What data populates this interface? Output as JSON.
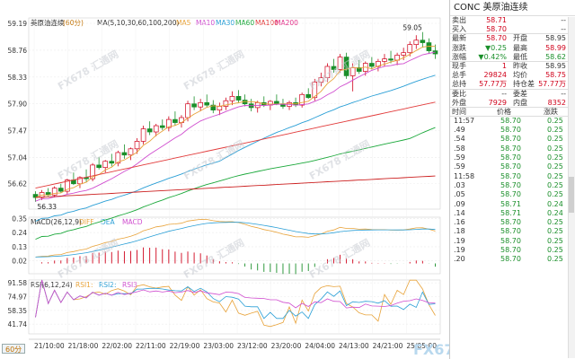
{
  "period_label": "60分",
  "main_header": {
    "name": "美原油连续",
    "period": "(60分)",
    "ma_label": "MA(5,10,30,60,100,200)",
    "ma_items": [
      {
        "label": "MA5",
        "color": "#e8a33a"
      },
      {
        "label": "MA10",
        "color": "#d04ecf"
      },
      {
        "label": "MA30",
        "color": "#2a9fd6"
      },
      {
        "label": "MA60",
        "color": "#1aa83a"
      },
      {
        "label": "MA100",
        "color": "#e23c3c"
      },
      {
        "label": "MA200",
        "color": "#e2328a"
      }
    ]
  },
  "macd_header": {
    "label": "MACD(26,12,9)",
    "items": [
      {
        "label": "DIFF",
        "color": "#e8a33a"
      },
      {
        "label": "DEA",
        "color": "#2a9fd6"
      },
      {
        "label": "MACD",
        "color": "#d04ecf"
      }
    ]
  },
  "rsi_header": {
    "label": "RSI(6,12,24)",
    "items": [
      {
        "label": "RSI1:",
        "color": "#e8a33a"
      },
      {
        "label": "RSI2:",
        "color": "#2a9fd6"
      },
      {
        "label": "RSI3",
        "color": "#d04ecf"
      }
    ]
  },
  "watermark_text": "FX678 汇通网",
  "logo_text": "FX678 汇通网",
  "chart_data": {
    "type": "candlestick",
    "price_axis_ticks": [
      "59.19",
      "58.76",
      "58.33",
      "57.90",
      "57.47",
      "57.04",
      "56.62"
    ],
    "price_ylim": [
      56.3,
      59.19
    ],
    "macd_axis_ticks": [
      "0.35",
      "0.24",
      "0.13",
      "0.02"
    ],
    "macd_ylim": [
      -0.08,
      0.36
    ],
    "rsi_axis_ticks": [
      "91.58",
      "74.97",
      "58.35",
      "41.74"
    ],
    "rsi_ylim": [
      30,
      95
    ],
    "time_labels": [
      "21/10:00",
      "21/18:00",
      "22/02:00",
      "22/11:00",
      "22/19:00",
      "23/03:00",
      "23/12:00",
      "23/20:00",
      "24/04:00",
      "24/13:00",
      "24/21:00",
      "25/05:00"
    ],
    "annotations": {
      "high": "59.05",
      "low": "56.33"
    },
    "candles": [
      [
        56.45,
        56.5,
        56.33,
        56.4
      ],
      [
        56.4,
        56.52,
        56.36,
        56.48
      ],
      [
        56.48,
        56.55,
        56.42,
        56.44
      ],
      [
        56.44,
        56.58,
        56.4,
        56.55
      ],
      [
        56.55,
        56.62,
        56.48,
        56.5
      ],
      [
        56.5,
        56.7,
        56.46,
        56.68
      ],
      [
        56.68,
        56.8,
        56.6,
        56.62
      ],
      [
        56.62,
        56.74,
        56.55,
        56.72
      ],
      [
        56.72,
        56.85,
        56.65,
        56.7
      ],
      [
        56.7,
        56.95,
        56.66,
        56.92
      ],
      [
        56.92,
        57.05,
        56.85,
        56.88
      ],
      [
        56.88,
        57.0,
        56.8,
        56.98
      ],
      [
        56.98,
        57.1,
        56.9,
        56.95
      ],
      [
        56.95,
        57.15,
        56.9,
        57.12
      ],
      [
        57.12,
        57.25,
        57.02,
        57.08
      ],
      [
        57.08,
        57.2,
        57.0,
        57.18
      ],
      [
        57.18,
        57.35,
        57.1,
        57.3
      ],
      [
        57.3,
        57.55,
        57.25,
        57.5
      ],
      [
        57.5,
        57.62,
        57.4,
        57.45
      ],
      [
        57.45,
        57.58,
        57.38,
        57.55
      ],
      [
        57.55,
        57.65,
        57.48,
        57.52
      ],
      [
        57.52,
        57.7,
        57.46,
        57.65
      ],
      [
        57.65,
        57.78,
        57.55,
        57.6
      ],
      [
        57.6,
        57.72,
        57.52,
        57.68
      ],
      [
        57.68,
        57.95,
        57.62,
        57.9
      ],
      [
        57.9,
        58.02,
        57.8,
        57.85
      ],
      [
        57.85,
        57.98,
        57.78,
        57.92
      ],
      [
        57.92,
        58.05,
        57.84,
        57.88
      ],
      [
        57.88,
        57.96,
        57.75,
        57.8
      ],
      [
        57.8,
        57.92,
        57.72,
        57.86
      ],
      [
        57.86,
        58.0,
        57.8,
        57.95
      ],
      [
        57.95,
        58.1,
        57.88,
        58.02
      ],
      [
        58.02,
        58.12,
        57.92,
        57.96
      ],
      [
        57.96,
        58.05,
        57.86,
        57.9
      ],
      [
        57.9,
        57.98,
        57.78,
        57.84
      ],
      [
        57.84,
        57.95,
        57.76,
        57.92
      ],
      [
        57.92,
        58.02,
        57.85,
        57.88
      ],
      [
        57.88,
        57.96,
        57.8,
        57.94
      ],
      [
        57.94,
        58.05,
        57.88,
        57.9
      ],
      [
        57.9,
        57.98,
        57.82,
        57.86
      ],
      [
        57.86,
        57.95,
        57.8,
        57.92
      ],
      [
        57.92,
        58.0,
        57.85,
        57.88
      ],
      [
        57.88,
        58.08,
        57.84,
        58.05
      ],
      [
        58.05,
        58.15,
        57.98,
        58.0
      ],
      [
        58.0,
        58.3,
        57.95,
        58.25
      ],
      [
        58.25,
        58.4,
        58.18,
        58.32
      ],
      [
        58.32,
        58.55,
        58.25,
        58.5
      ],
      [
        58.5,
        58.62,
        58.4,
        58.45
      ],
      [
        58.45,
        58.7,
        58.4,
        58.65
      ],
      [
        58.65,
        58.72,
        58.3,
        58.35
      ],
      [
        58.35,
        58.55,
        58.1,
        58.48
      ],
      [
        58.48,
        58.6,
        58.38,
        58.42
      ],
      [
        58.42,
        58.58,
        58.35,
        58.55
      ],
      [
        58.55,
        58.65,
        58.45,
        58.5
      ],
      [
        58.5,
        58.62,
        58.42,
        58.58
      ],
      [
        58.58,
        58.7,
        58.5,
        58.62
      ],
      [
        58.62,
        58.75,
        58.55,
        58.6
      ],
      [
        58.6,
        58.72,
        58.52,
        58.68
      ],
      [
        58.68,
        58.8,
        58.6,
        58.72
      ],
      [
        58.72,
        58.9,
        58.66,
        58.85
      ],
      [
        58.85,
        59.0,
        58.78,
        58.92
      ],
      [
        58.92,
        59.05,
        58.8,
        58.88
      ],
      [
        58.88,
        58.95,
        58.7,
        58.75
      ],
      [
        58.75,
        58.85,
        58.62,
        58.7
      ]
    ]
  },
  "quote": {
    "title": "CONC 美原油连续",
    "rows": [
      {
        "l1": "卖出",
        "v1": "58.71",
        "c1": "red",
        "l2": "",
        "v2": "--",
        "c2": "lbl"
      },
      {
        "l1": "买入",
        "v1": "58.70",
        "c1": "red",
        "l2": "",
        "v2": "--",
        "c2": "lbl"
      },
      {
        "l1": "最新",
        "v1": "58.70",
        "c1": "red",
        "l2": "开盘",
        "v2": "58.95",
        "c2": "lbl"
      },
      {
        "l1": "涨跌",
        "v1": "▼0.25",
        "c1": "green",
        "l2": "最高",
        "v2": "58.99",
        "c2": "red"
      },
      {
        "l1": "涨幅",
        "v1": "▼0.42%",
        "c1": "green",
        "l2": "最低",
        "v2": "58.62",
        "c2": "green"
      },
      {
        "l1": "现手",
        "v1": "1",
        "c1": "red",
        "l2": "昨收",
        "v2": "58.95",
        "c2": "lbl"
      },
      {
        "l1": "总手",
        "v1": "29824",
        "c1": "red",
        "l2": "均价",
        "v2": "58.75",
        "c2": "red"
      },
      {
        "l1": "总持",
        "v1": "57.77万",
        "c1": "red",
        "l2": "持仓差",
        "v2": "57.77万",
        "c2": "red"
      },
      {
        "l1": "委比",
        "v1": "--",
        "c1": "lbl",
        "l2": "委差",
        "v2": "--",
        "c2": "lbl"
      },
      {
        "l1": "外盘",
        "v1": "7929",
        "c1": "red",
        "l2": "内盘",
        "v2": "8352",
        "c2": "red"
      }
    ],
    "tick_headers": [
      "时间",
      "价格",
      "涨跌"
    ],
    "ticks": [
      {
        "t": "11:57",
        "p": "58.70",
        "d": "0.25"
      },
      {
        "t": ".49",
        "p": "58.70",
        "d": "0.25"
      },
      {
        "t": ".54",
        "p": "58.70",
        "d": "0.25"
      },
      {
        "t": ".58",
        "p": "58.70",
        "d": "0.25"
      },
      {
        "t": ".59",
        "p": "58.70",
        "d": "0.25"
      },
      {
        "t": ".59",
        "p": "58.70",
        "d": "0.25"
      },
      {
        "t": "11:58",
        "p": "58.70",
        "d": "0.25"
      },
      {
        "t": ".03",
        "p": "58.70",
        "d": "0.25"
      },
      {
        "t": ".05",
        "p": "58.70",
        "d": "0.25"
      },
      {
        "t": ".09",
        "p": "58.71",
        "d": "0.24"
      },
      {
        "t": ".14",
        "p": "58.71",
        "d": "0.24"
      },
      {
        "t": ".16",
        "p": "58.70",
        "d": "0.25"
      },
      {
        "t": ".18",
        "p": "58.70",
        "d": "0.25"
      },
      {
        "t": ".19",
        "p": "58.70",
        "d": "0.25"
      },
      {
        "t": ".19",
        "p": "58.70",
        "d": "0.25"
      },
      {
        "t": ".20",
        "p": "58.70",
        "d": "0.25"
      }
    ]
  }
}
